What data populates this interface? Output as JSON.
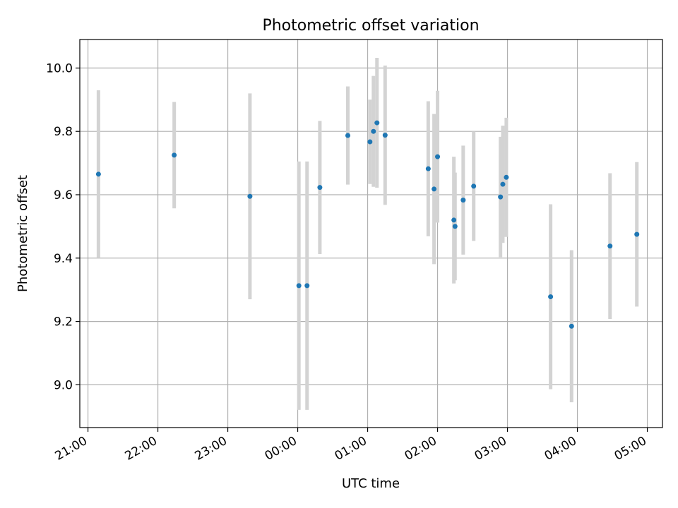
{
  "chart_data": {
    "type": "scatter",
    "title": "Photometric offset variation",
    "xlabel": "UTC time",
    "ylabel": "Photometric offset",
    "x_axis": {
      "type": "time",
      "range": [
        "20:53",
        "05:13"
      ],
      "ticks": [
        "21:00",
        "22:00",
        "23:00",
        "00:00",
        "01:00",
        "02:00",
        "03:00",
        "04:00",
        "05:00"
      ]
    },
    "y_axis": {
      "range": [
        8.865,
        10.09
      ],
      "ticks": [
        "9.0",
        "9.2",
        "9.4",
        "9.6",
        "9.8",
        "10.0"
      ]
    },
    "grid": true,
    "colors": {
      "marker": "#1f77b4",
      "errorbar": "#d3d3d3",
      "grid": "#b0b0b0"
    },
    "points": [
      {
        "x": "21:09",
        "y": 9.665,
        "err": 0.265
      },
      {
        "x": "22:14",
        "y": 9.725,
        "err": 0.168
      },
      {
        "x": "23:19",
        "y": 9.595,
        "err": 0.325
      },
      {
        "x": "00:01",
        "y": 9.313,
        "err": 0.392
      },
      {
        "x": "00:08",
        "y": 9.313,
        "err": 0.392
      },
      {
        "x": "00:19",
        "y": 9.623,
        "err": 0.21
      },
      {
        "x": "00:43",
        "y": 9.787,
        "err": 0.155
      },
      {
        "x": "01:02",
        "y": 9.767,
        "err": 0.133
      },
      {
        "x": "01:05",
        "y": 9.8,
        "err": 0.175
      },
      {
        "x": "01:08",
        "y": 9.827,
        "err": 0.205
      },
      {
        "x": "01:15",
        "y": 9.788,
        "err": 0.22
      },
      {
        "x": "01:52",
        "y": 9.682,
        "err": 0.213
      },
      {
        "x": "01:57",
        "y": 9.618,
        "err": 0.237
      },
      {
        "x": "02:00",
        "y": 9.72,
        "err": 0.208
      },
      {
        "x": "02:14",
        "y": 9.52,
        "err": 0.2
      },
      {
        "x": "02:15",
        "y": 9.5,
        "err": 0.17
      },
      {
        "x": "02:22",
        "y": 9.583,
        "err": 0.172
      },
      {
        "x": "02:31",
        "y": 9.627,
        "err": 0.173
      },
      {
        "x": "02:54",
        "y": 9.593,
        "err": 0.19
      },
      {
        "x": "02:56",
        "y": 9.633,
        "err": 0.185
      },
      {
        "x": "02:59",
        "y": 9.655,
        "err": 0.188
      },
      {
        "x": "03:37",
        "y": 9.278,
        "err": 0.292
      },
      {
        "x": "03:55",
        "y": 9.185,
        "err": 0.24
      },
      {
        "x": "04:28",
        "y": 9.438,
        "err": 0.23
      },
      {
        "x": "04:51",
        "y": 9.475,
        "err": 0.228
      }
    ]
  }
}
